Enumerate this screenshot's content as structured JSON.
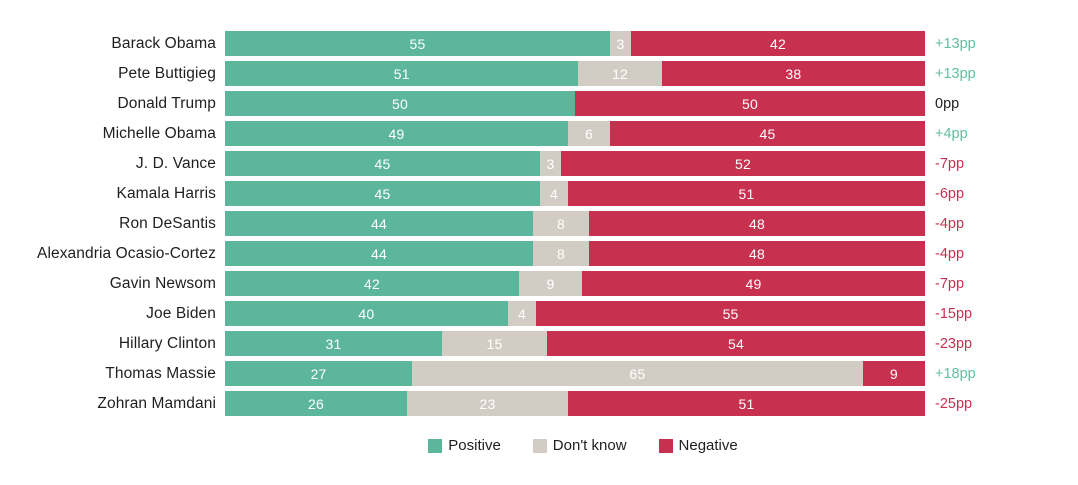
{
  "chart_data": {
    "type": "bar",
    "orientation": "horizontal",
    "stacked": true,
    "title": "",
    "xlabel": "",
    "ylabel": "",
    "xlim": [
      0,
      100
    ],
    "grid": false,
    "legend_position": "bottom",
    "categories": [
      "Barack Obama",
      "Pete Buttigieg",
      "Donald Trump",
      "Michelle Obama",
      "J. D. Vance",
      "Kamala Harris",
      "Ron DeSantis",
      "Alexandria Ocasio-Cortez",
      "Gavin Newsom",
      "Joe Biden",
      "Hillary Clinton",
      "Thomas Massie",
      "Zohran Mamdani"
    ],
    "series": [
      {
        "name": "Positive",
        "key": "positive",
        "color": "#5cb69c",
        "values": [
          55,
          51,
          50,
          49,
          45,
          45,
          44,
          44,
          42,
          40,
          31,
          27,
          26
        ]
      },
      {
        "name": "Don't know",
        "key": "dont-know",
        "color": "#d3ccc4",
        "values": [
          3,
          12,
          0,
          6,
          3,
          4,
          8,
          8,
          9,
          4,
          15,
          65,
          23
        ]
      },
      {
        "name": "Negative",
        "key": "negative",
        "color": "#c8304f",
        "values": [
          42,
          38,
          50,
          45,
          52,
          51,
          48,
          48,
          49,
          55,
          54,
          9,
          51
        ]
      }
    ],
    "net_labels": [
      "+13pp",
      "+13pp",
      "0pp",
      "+4pp",
      "-7pp",
      "-6pp",
      "-4pp",
      "-4pp",
      "-7pp",
      "-15pp",
      "-23pp",
      "+18pp",
      "-25pp"
    ]
  },
  "colors": {
    "net_positive": "#63bda1",
    "net_negative": "#c8304f",
    "net_zero": "#1c1c1c",
    "value_label": "#ffffff"
  }
}
